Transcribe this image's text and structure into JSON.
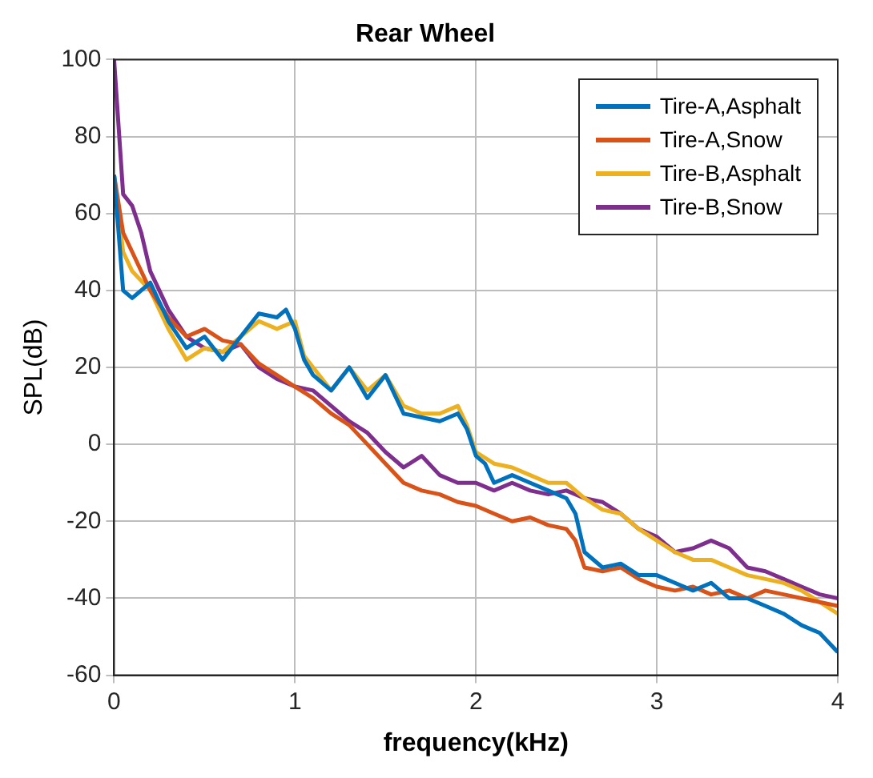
{
  "chart_data": {
    "type": "line",
    "title": "Rear Wheel",
    "xlabel": "frequency(kHz)",
    "ylabel": "SPL(dB)",
    "xlim": [
      0,
      4
    ],
    "xticks": [
      0,
      1,
      2,
      3,
      4
    ],
    "ylim": [
      -60,
      100
    ],
    "yticks": [
      -60,
      -40,
      -20,
      0,
      20,
      40,
      60,
      80,
      100
    ],
    "grid": true,
    "legend": "top right",
    "marker": "none",
    "line_style": "solid",
    "series": [
      {
        "name": "Tire-A,Asphalt",
        "color": "#0072bd",
        "x": [
          0,
          0.05,
          0.1,
          0.2,
          0.3,
          0.4,
          0.5,
          0.6,
          0.7,
          0.8,
          0.9,
          0.95,
          1.0,
          1.05,
          1.1,
          1.2,
          1.3,
          1.4,
          1.5,
          1.6,
          1.7,
          1.8,
          1.9,
          1.95,
          2.0,
          2.05,
          2.1,
          2.2,
          2.3,
          2.4,
          2.5,
          2.55,
          2.6,
          2.7,
          2.8,
          2.9,
          3.0,
          3.1,
          3.2,
          3.3,
          3.4,
          3.5,
          3.6,
          3.7,
          3.8,
          3.9,
          4.0
        ],
        "values": [
          70,
          40,
          38,
          42,
          32,
          25,
          28,
          22,
          28,
          34,
          33,
          35,
          30,
          22,
          18,
          14,
          20,
          12,
          18,
          8,
          7,
          6,
          8,
          4,
          -3,
          -5,
          -10,
          -8,
          -10,
          -12,
          -14,
          -18,
          -28,
          -32,
          -31,
          -34,
          -34,
          -36,
          -38,
          -36,
          -40,
          -40,
          -42,
          -44,
          -47,
          -49,
          -54
        ]
      },
      {
        "name": "Tire-A,Snow",
        "color": "#d95319",
        "x": [
          0,
          0.05,
          0.1,
          0.2,
          0.3,
          0.4,
          0.5,
          0.6,
          0.7,
          0.8,
          0.9,
          1.0,
          1.1,
          1.2,
          1.3,
          1.4,
          1.5,
          1.6,
          1.7,
          1.8,
          1.9,
          2.0,
          2.1,
          2.2,
          2.3,
          2.4,
          2.5,
          2.55,
          2.6,
          2.7,
          2.8,
          2.9,
          3.0,
          3.1,
          3.2,
          3.3,
          3.4,
          3.5,
          3.6,
          3.7,
          3.8,
          3.9,
          4.0
        ],
        "values": [
          70,
          55,
          50,
          40,
          33,
          28,
          30,
          27,
          26,
          21,
          18,
          15,
          12,
          8,
          5,
          0,
          -5,
          -10,
          -12,
          -13,
          -15,
          -16,
          -18,
          -20,
          -19,
          -21,
          -22,
          -25,
          -32,
          -33,
          -32,
          -35,
          -37,
          -38,
          -37,
          -39,
          -38,
          -40,
          -38,
          -39,
          -40,
          -41,
          -42
        ]
      },
      {
        "name": "Tire-B,Asphalt",
        "color": "#edb120",
        "x": [
          0,
          0.05,
          0.1,
          0.2,
          0.3,
          0.4,
          0.5,
          0.6,
          0.7,
          0.8,
          0.9,
          1.0,
          1.05,
          1.1,
          1.2,
          1.3,
          1.4,
          1.5,
          1.6,
          1.7,
          1.8,
          1.9,
          1.95,
          2.0,
          2.1,
          2.2,
          2.3,
          2.4,
          2.5,
          2.6,
          2.7,
          2.8,
          2.9,
          3.0,
          3.1,
          3.2,
          3.3,
          3.4,
          3.5,
          3.6,
          3.7,
          3.8,
          3.9,
          4.0
        ],
        "values": [
          70,
          50,
          45,
          40,
          30,
          22,
          25,
          24,
          28,
          32,
          30,
          32,
          23,
          20,
          14,
          20,
          14,
          18,
          10,
          8,
          8,
          10,
          5,
          -2,
          -5,
          -6,
          -8,
          -10,
          -10,
          -14,
          -17,
          -18,
          -22,
          -25,
          -28,
          -30,
          -30,
          -32,
          -34,
          -35,
          -36,
          -38,
          -41,
          -44
        ]
      },
      {
        "name": "Tire-B,Snow",
        "color": "#7e2f8e",
        "x": [
          0,
          0.05,
          0.1,
          0.15,
          0.2,
          0.3,
          0.4,
          0.5,
          0.6,
          0.7,
          0.8,
          0.9,
          1.0,
          1.1,
          1.2,
          1.3,
          1.4,
          1.5,
          1.6,
          1.7,
          1.8,
          1.9,
          2.0,
          2.1,
          2.2,
          2.3,
          2.4,
          2.5,
          2.6,
          2.7,
          2.8,
          2.9,
          3.0,
          3.1,
          3.2,
          3.3,
          3.4,
          3.5,
          3.6,
          3.7,
          3.8,
          3.9,
          4.0
        ],
        "values": [
          100,
          65,
          62,
          55,
          45,
          35,
          28,
          25,
          24,
          26,
          20,
          17,
          15,
          14,
          10,
          6,
          3,
          -2,
          -6,
          -3,
          -8,
          -10,
          -10,
          -12,
          -10,
          -12,
          -13,
          -12,
          -14,
          -15,
          -18,
          -22,
          -24,
          -28,
          -27,
          -25,
          -27,
          -32,
          -33,
          -35,
          -37,
          -39,
          -40
        ]
      }
    ]
  }
}
